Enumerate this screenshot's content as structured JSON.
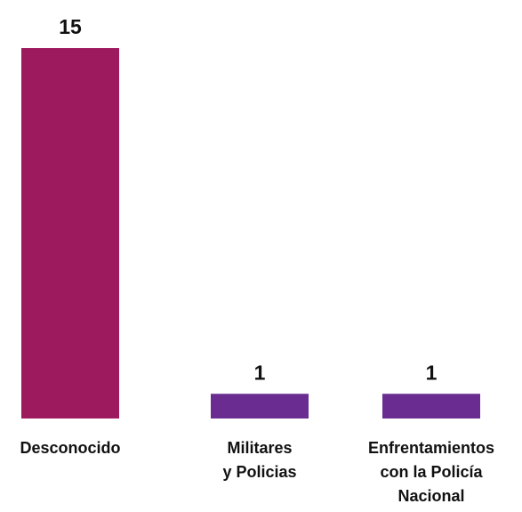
{
  "chart_data": {
    "type": "bar",
    "title": "",
    "xlabel": "",
    "ylabel": "",
    "categories": [
      [
        "Desconocido"
      ],
      [
        "Militares",
        "y Policias"
      ],
      [
        "Enfrentamientos",
        "con la Policía",
        "Nacional"
      ]
    ],
    "values": [
      15,
      1,
      1
    ],
    "ylim": [
      0,
      15
    ],
    "grid": false,
    "legend": "none",
    "colors": [
      "#9E1A5E",
      "#6A2C91",
      "#6A2C91"
    ]
  }
}
